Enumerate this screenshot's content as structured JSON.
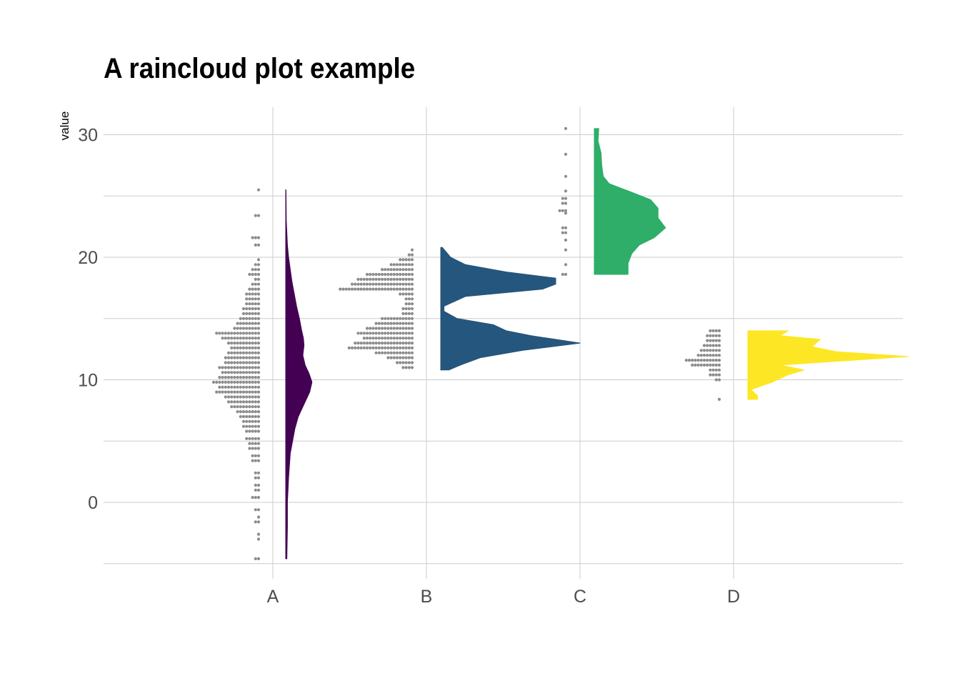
{
  "chart_data": {
    "type": "raincloud",
    "title": "A raincloud plot example",
    "xlabel": "",
    "ylabel": "value",
    "ylim": [
      -5,
      32
    ],
    "yticks": [
      0,
      10,
      20,
      30
    ],
    "grid": true,
    "legend": "none",
    "categories": [
      "A",
      "B",
      "C",
      "D"
    ],
    "groups": [
      {
        "category": "A",
        "color": "#440154",
        "range": [
          -4.6,
          25.5
        ],
        "density": [
          [
            -4.6,
            0.02
          ],
          [
            -2,
            0.03
          ],
          [
            0,
            0.03
          ],
          [
            2,
            0.05
          ],
          [
            4,
            0.08
          ],
          [
            5,
            0.12
          ],
          [
            6,
            0.16
          ],
          [
            7,
            0.22
          ],
          [
            8,
            0.32
          ],
          [
            9,
            0.42
          ],
          [
            9.8,
            0.46
          ],
          [
            10.5,
            0.41
          ],
          [
            11.2,
            0.34
          ],
          [
            12,
            0.3
          ],
          [
            12.8,
            0.32
          ],
          [
            13.4,
            0.31
          ],
          [
            14,
            0.28
          ],
          [
            15,
            0.24
          ],
          [
            16,
            0.19
          ],
          [
            17,
            0.15
          ],
          [
            18,
            0.11
          ],
          [
            19,
            0.08
          ],
          [
            20,
            0.05
          ],
          [
            21,
            0.03
          ],
          [
            22,
            0.02
          ],
          [
            23,
            0.01
          ],
          [
            25.5,
            0.005
          ]
        ],
        "dots": [
          [
            -4.6,
            2
          ],
          [
            -3,
            1
          ],
          [
            -2.6,
            1
          ],
          [
            -1.6,
            2
          ],
          [
            -1.2,
            1
          ],
          [
            -0.6,
            2
          ],
          [
            0.4,
            3
          ],
          [
            1,
            2
          ],
          [
            1.4,
            2
          ],
          [
            2,
            2
          ],
          [
            2.4,
            2
          ],
          [
            3.4,
            3
          ],
          [
            3.8,
            3
          ],
          [
            4.4,
            4
          ],
          [
            4.8,
            4
          ],
          [
            5.2,
            5
          ],
          [
            5.8,
            5
          ],
          [
            6.2,
            6
          ],
          [
            6.6,
            6
          ],
          [
            7,
            7
          ],
          [
            7.4,
            8
          ],
          [
            7.8,
            10
          ],
          [
            8.2,
            11
          ],
          [
            8.6,
            12
          ],
          [
            9,
            15
          ],
          [
            9.4,
            14
          ],
          [
            9.8,
            16
          ],
          [
            10.2,
            14
          ],
          [
            10.6,
            13
          ],
          [
            11,
            14
          ],
          [
            11.4,
            12
          ],
          [
            11.8,
            12
          ],
          [
            12.2,
            11
          ],
          [
            12.6,
            10
          ],
          [
            13,
            11
          ],
          [
            13.4,
            13
          ],
          [
            13.8,
            15
          ],
          [
            14.2,
            9
          ],
          [
            14.6,
            8
          ],
          [
            15,
            7
          ],
          [
            15.4,
            6
          ],
          [
            15.8,
            6
          ],
          [
            16.2,
            5
          ],
          [
            16.6,
            5
          ],
          [
            17,
            5
          ],
          [
            17.4,
            4
          ],
          [
            17.8,
            3
          ],
          [
            18.2,
            2
          ],
          [
            18.6,
            4
          ],
          [
            19,
            3
          ],
          [
            19.4,
            2
          ],
          [
            19.8,
            1
          ],
          [
            21,
            2
          ],
          [
            21.6,
            3
          ],
          [
            23.4,
            2
          ],
          [
            25.5,
            1
          ]
        ]
      },
      {
        "category": "B",
        "color": "#25567d",
        "range": [
          10.8,
          20.8
        ],
        "density": [
          [
            10.8,
            0.05
          ],
          [
            11.2,
            0.12
          ],
          [
            11.8,
            0.24
          ],
          [
            12.4,
            0.5
          ],
          [
            13,
            0.85
          ],
          [
            13.6,
            0.55
          ],
          [
            14,
            0.4
          ],
          [
            14.5,
            0.32
          ],
          [
            15,
            0.1
          ],
          [
            15.6,
            0.02
          ],
          [
            16,
            0.02
          ],
          [
            16.8,
            0.15
          ],
          [
            17.4,
            0.62
          ],
          [
            17.8,
            0.7
          ],
          [
            18.3,
            0.7
          ],
          [
            18.8,
            0.4
          ],
          [
            19.4,
            0.15
          ],
          [
            20,
            0.06
          ],
          [
            20.8,
            0.01
          ]
        ],
        "dots": [
          [
            11,
            4
          ],
          [
            11.4,
            6
          ],
          [
            11.8,
            9
          ],
          [
            12.2,
            13
          ],
          [
            12.6,
            22
          ],
          [
            13,
            20
          ],
          [
            13.4,
            17
          ],
          [
            13.8,
            19
          ],
          [
            14.2,
            16
          ],
          [
            14.6,
            13
          ],
          [
            15,
            11
          ],
          [
            15.4,
            4
          ],
          [
            15.8,
            4
          ],
          [
            16.2,
            3
          ],
          [
            16.6,
            3
          ],
          [
            17,
            5
          ],
          [
            17.4,
            25
          ],
          [
            17.8,
            21
          ],
          [
            18.2,
            19
          ],
          [
            18.6,
            16
          ],
          [
            19,
            11
          ],
          [
            19.4,
            8
          ],
          [
            19.8,
            5
          ],
          [
            20.2,
            2
          ],
          [
            20.6,
            1
          ]
        ]
      },
      {
        "category": "C",
        "color": "#2eae68",
        "range": [
          18.6,
          30.5
        ],
        "density": [
          [
            18.6,
            0.45
          ],
          [
            19.5,
            0.45
          ],
          [
            20.3,
            0.5
          ],
          [
            21,
            0.6
          ],
          [
            21.6,
            0.8
          ],
          [
            22.4,
            0.95
          ],
          [
            23.2,
            0.85
          ],
          [
            24,
            0.85
          ],
          [
            24.7,
            0.75
          ],
          [
            25.3,
            0.5
          ],
          [
            26,
            0.2
          ],
          [
            26.6,
            0.12
          ],
          [
            27.5,
            0.1
          ],
          [
            28.5,
            0.09
          ],
          [
            29.5,
            0.05
          ],
          [
            30.5,
            0.06
          ]
        ],
        "dots": [
          [
            18.6,
            2
          ],
          [
            19.4,
            1
          ],
          [
            20.6,
            1
          ],
          [
            21.4,
            1
          ],
          [
            22,
            2
          ],
          [
            22.4,
            2
          ],
          [
            23.6,
            1
          ],
          [
            23.8,
            3
          ],
          [
            24.4,
            2
          ],
          [
            24.8,
            2
          ],
          [
            25.4,
            1
          ],
          [
            26.6,
            1
          ],
          [
            28.4,
            1
          ],
          [
            30.5,
            1
          ]
        ]
      },
      {
        "category": "D",
        "color": "#fde725",
        "range": [
          8.4,
          14
        ],
        "density": [
          [
            8.4,
            0.06
          ],
          [
            8.7,
            0.06
          ],
          [
            9.2,
            0.02
          ],
          [
            9.8,
            0.15
          ],
          [
            10.4,
            0.25
          ],
          [
            10.8,
            0.35
          ],
          [
            11.2,
            0.2
          ],
          [
            11.6,
            0.65
          ],
          [
            11.9,
            1
          ],
          [
            12.3,
            0.55
          ],
          [
            12.7,
            0.4
          ],
          [
            13.3,
            0.45
          ],
          [
            13.6,
            0.2
          ],
          [
            14,
            0.25
          ]
        ],
        "dots": [
          [
            8.4,
            1
          ],
          [
            10,
            2
          ],
          [
            10.4,
            4
          ],
          [
            10.8,
            4
          ],
          [
            11.2,
            10
          ],
          [
            11.6,
            12
          ],
          [
            12,
            8
          ],
          [
            12.4,
            7
          ],
          [
            12.8,
            6
          ],
          [
            13.2,
            5
          ],
          [
            13.6,
            5
          ],
          [
            14,
            4
          ]
        ]
      }
    ]
  }
}
